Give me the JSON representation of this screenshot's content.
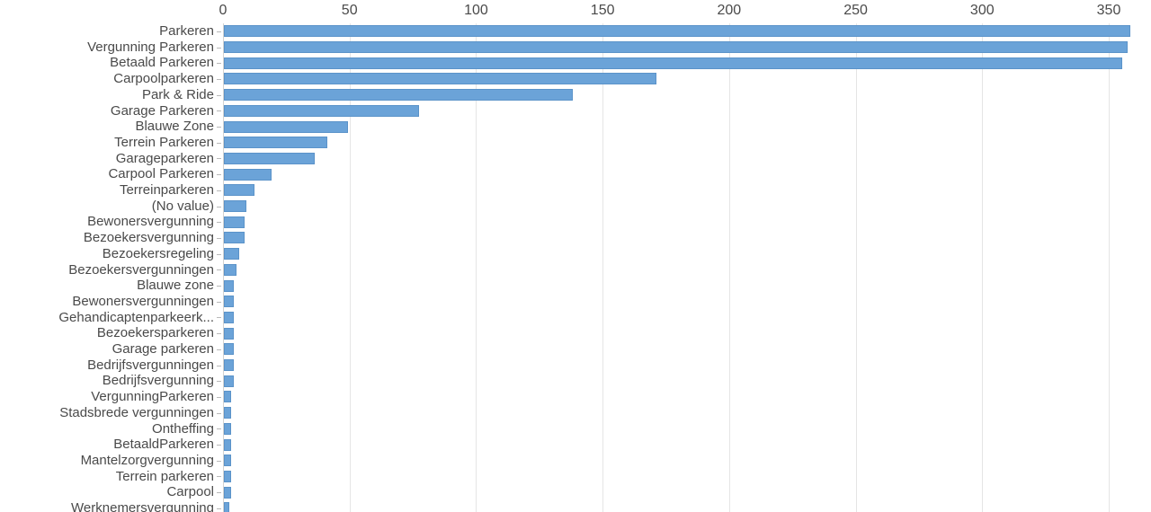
{
  "chart_data": {
    "type": "bar",
    "orientation": "horizontal",
    "title": "",
    "xlabel": "",
    "ylabel": "",
    "axis_position": "top",
    "grid": true,
    "legend": false,
    "xlim": [
      0,
      366.7
    ],
    "axis_ticks": [
      0,
      50,
      100,
      150,
      200,
      250,
      300,
      350
    ],
    "categories": [
      "Parkeren",
      "Vergunning Parkeren",
      "Betaald Parkeren",
      "Carpoolparkeren",
      "Park & Ride",
      "Garage Parkeren",
      "Blauwe Zone",
      "Terrein Parkeren",
      "Garageparkeren",
      "Carpool Parkeren",
      "Terreinparkeren",
      "(No value)",
      "Bewonersvergunning",
      "Bezoekersvergunning",
      "Bezoekersregeling",
      "Bezoekersvergunningen",
      "Blauwe zone",
      "Bewonersvergunningen",
      "Gehandicaptenparkeerk...",
      "Bezoekersparkeren",
      "Garage parkeren",
      "Bedrijfsvergunningen",
      "Bedrijfsvergunning",
      "VergunningParkeren",
      "Stadsbrede vergunningen",
      "Ontheffing",
      "BetaaldParkeren",
      "Mantelzorgvergunning",
      "Terrein parkeren",
      "Carpool",
      "Werknemersvergunning"
    ],
    "values": [
      358,
      357,
      355,
      171,
      138,
      77,
      49,
      41,
      36,
      19,
      12,
      9,
      8,
      8,
      6,
      5,
      4,
      4,
      4,
      4,
      4,
      4,
      4,
      3,
      3,
      3,
      3,
      3,
      3,
      3,
      2
    ],
    "colors": {
      "bar_fill": "#6ba3d8",
      "bar_border": "#5b93c9",
      "gridline": "#e5e5e5",
      "axis_line": "#d2d2d2",
      "category_tick": "#b9b9b9",
      "text": "#4a4a4a",
      "background": "#ffffff"
    }
  }
}
